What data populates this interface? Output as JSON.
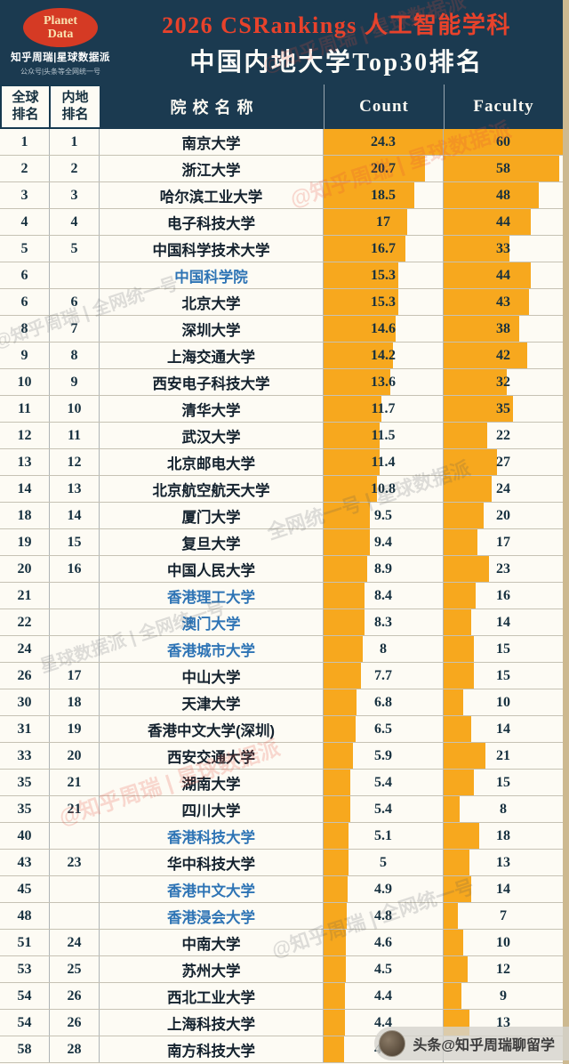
{
  "header": {
    "logo_line1": "Planet",
    "logo_line2": "Data",
    "brand": "知乎周瑞|星球数据派",
    "brand_sub": "公众号|头条等全网统一号",
    "title_line1": "2026 CSRankings 人工智能学科",
    "title_line2": "中国内地大学Top30排名"
  },
  "columns": {
    "g1": "全球",
    "g2": "排名",
    "m1": "内地",
    "m2": "排名",
    "name": "院校名称",
    "count": "Count",
    "faculty": "Faculty"
  },
  "chart_data": {
    "type": "table",
    "title": "2026 CSRankings 人工智能学科 中国内地大学Top30排名",
    "columns": [
      "全球排名",
      "内地排名",
      "院校名称",
      "Count",
      "Faculty"
    ],
    "bar_color": "#F7A81E",
    "count_axis_max": 24.3,
    "faculty_axis_max": 60,
    "rows": [
      {
        "global": "1",
        "mainland": "1",
        "name": "南京大学",
        "count": 24.3,
        "faculty": 60,
        "blue": false
      },
      {
        "global": "2",
        "mainland": "2",
        "name": "浙江大学",
        "count": 20.7,
        "faculty": 58,
        "blue": false
      },
      {
        "global": "3",
        "mainland": "3",
        "name": "哈尔滨工业大学",
        "count": 18.5,
        "faculty": 48,
        "blue": false
      },
      {
        "global": "4",
        "mainland": "4",
        "name": "电子科技大学",
        "count": 17,
        "faculty": 44,
        "blue": false
      },
      {
        "global": "5",
        "mainland": "5",
        "name": "中国科学技术大学",
        "count": 16.7,
        "faculty": 33,
        "blue": false
      },
      {
        "global": "6",
        "mainland": "",
        "name": "中国科学院",
        "count": 15.3,
        "faculty": 44,
        "blue": true
      },
      {
        "global": "6",
        "mainland": "6",
        "name": "北京大学",
        "count": 15.3,
        "faculty": 43,
        "blue": false
      },
      {
        "global": "8",
        "mainland": "7",
        "name": "深圳大学",
        "count": 14.6,
        "faculty": 38,
        "blue": false
      },
      {
        "global": "9",
        "mainland": "8",
        "name": "上海交通大学",
        "count": 14.2,
        "faculty": 42,
        "blue": false
      },
      {
        "global": "10",
        "mainland": "9",
        "name": "西安电子科技大学",
        "count": 13.6,
        "faculty": 32,
        "blue": false
      },
      {
        "global": "11",
        "mainland": "10",
        "name": "清华大学",
        "count": 11.7,
        "faculty": 35,
        "blue": false
      },
      {
        "global": "12",
        "mainland": "11",
        "name": "武汉大学",
        "count": 11.5,
        "faculty": 22,
        "blue": false
      },
      {
        "global": "13",
        "mainland": "12",
        "name": "北京邮电大学",
        "count": 11.4,
        "faculty": 27,
        "blue": false
      },
      {
        "global": "14",
        "mainland": "13",
        "name": "北京航空航天大学",
        "count": 10.8,
        "faculty": 24,
        "blue": false
      },
      {
        "global": "18",
        "mainland": "14",
        "name": "厦门大学",
        "count": 9.5,
        "faculty": 20,
        "blue": false
      },
      {
        "global": "19",
        "mainland": "15",
        "name": "复旦大学",
        "count": 9.4,
        "faculty": 17,
        "blue": false
      },
      {
        "global": "20",
        "mainland": "16",
        "name": "中国人民大学",
        "count": 8.9,
        "faculty": 23,
        "blue": false
      },
      {
        "global": "21",
        "mainland": "",
        "name": "香港理工大学",
        "count": 8.4,
        "faculty": 16,
        "blue": true
      },
      {
        "global": "22",
        "mainland": "",
        "name": "澳门大学",
        "count": 8.3,
        "faculty": 14,
        "blue": true
      },
      {
        "global": "24",
        "mainland": "",
        "name": "香港城市大学",
        "count": 8,
        "faculty": 15,
        "blue": true
      },
      {
        "global": "26",
        "mainland": "17",
        "name": "中山大学",
        "count": 7.7,
        "faculty": 15,
        "blue": false
      },
      {
        "global": "30",
        "mainland": "18",
        "name": "天津大学",
        "count": 6.8,
        "faculty": 10,
        "blue": false
      },
      {
        "global": "31",
        "mainland": "19",
        "name": "香港中文大学(深圳)",
        "count": 6.5,
        "faculty": 14,
        "blue": false
      },
      {
        "global": "33",
        "mainland": "20",
        "name": "西安交通大学",
        "count": 5.9,
        "faculty": 21,
        "blue": false
      },
      {
        "global": "35",
        "mainland": "21",
        "name": "湖南大学",
        "count": 5.4,
        "faculty": 15,
        "blue": false
      },
      {
        "global": "35",
        "mainland": "21",
        "name": "四川大学",
        "count": 5.4,
        "faculty": 8,
        "blue": false
      },
      {
        "global": "40",
        "mainland": "",
        "name": "香港科技大学",
        "count": 5.1,
        "faculty": 18,
        "blue": true
      },
      {
        "global": "43",
        "mainland": "23",
        "name": "华中科技大学",
        "count": 5,
        "faculty": 13,
        "blue": false
      },
      {
        "global": "45",
        "mainland": "",
        "name": "香港中文大学",
        "count": 4.9,
        "faculty": 14,
        "blue": true
      },
      {
        "global": "48",
        "mainland": "",
        "name": "香港浸会大学",
        "count": 4.8,
        "faculty": 7,
        "blue": true
      },
      {
        "global": "51",
        "mainland": "24",
        "name": "中南大学",
        "count": 4.6,
        "faculty": 10,
        "blue": false
      },
      {
        "global": "53",
        "mainland": "25",
        "name": "苏州大学",
        "count": 4.5,
        "faculty": 12,
        "blue": false
      },
      {
        "global": "54",
        "mainland": "26",
        "name": "西北工业大学",
        "count": 4.4,
        "faculty": 9,
        "blue": false
      },
      {
        "global": "54",
        "mainland": "26",
        "name": "上海科技大学",
        "count": 4.4,
        "faculty": 13,
        "blue": false
      },
      {
        "global": "58",
        "mainland": "28",
        "name": "南方科技大学",
        "count": 4.2,
        "faculty": null,
        "blue": false
      }
    ]
  },
  "watermarks": [
    "@知乎周瑞 | 星球数据派",
    "@知乎周瑞 | 星球数据派",
    "@知乎周瑞 | 全网统一号",
    "全网统一号 | 星球数据派",
    "星球数据派 | 全网统一号",
    "@知乎周瑞 | 星球数据派",
    "@知乎周瑞 | 全网统一号"
  ],
  "attribution": {
    "text": "头条@知乎周瑞聊留学"
  },
  "colors": {
    "header_navy": "#1B3A50",
    "title_red": "#E8422B",
    "bar_orange": "#F7A81E",
    "hk_blue": "#2E74B5",
    "background_cream": "#FCF9F1",
    "edge_tan": "#CDB990"
  }
}
